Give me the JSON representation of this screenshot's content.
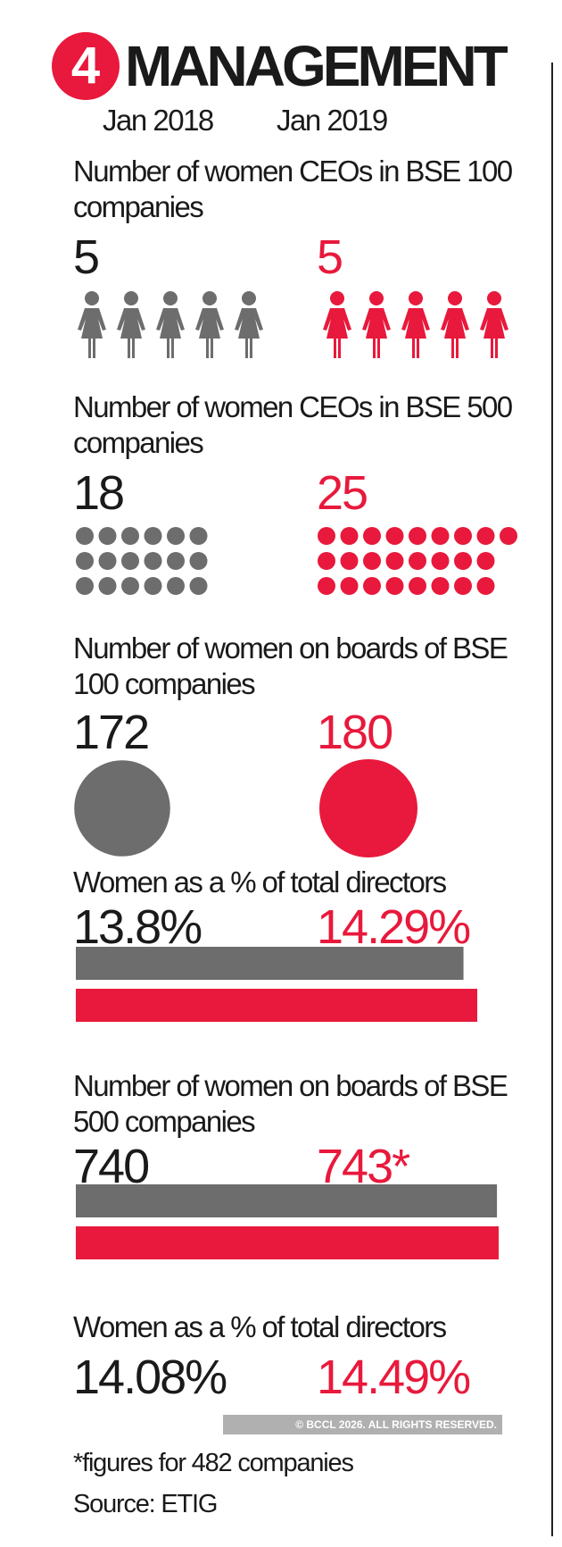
{
  "header": {
    "number": "4",
    "title": "MANAGEMENT",
    "period_1": "Jan 2018",
    "period_2": "Jan 2019"
  },
  "colors": {
    "jan_2018": "#6d6d6d",
    "jan_2019": "#e8193c",
    "badge": "#e8193c"
  },
  "chart_data": [
    {
      "type": "pictogram",
      "title": "Number of women CEOs in BSE 100 companies",
      "icon": "woman-icon",
      "categories": [
        "Jan 2018",
        "Jan 2019"
      ],
      "values": [
        5,
        5
      ],
      "labels": [
        "5",
        "5"
      ]
    },
    {
      "type": "pictogram",
      "title": "Number of women CEOs in BSE 500 companies",
      "icon": "dot",
      "categories": [
        "Jan 2018",
        "Jan 2019"
      ],
      "values": [
        18,
        25
      ],
      "labels": [
        "18",
        "25"
      ]
    },
    {
      "type": "bubble",
      "title": "Number of women on boards of BSE 100 companies",
      "categories": [
        "Jan 2018",
        "Jan 2019"
      ],
      "values": [
        172,
        180
      ],
      "labels": [
        "172",
        "180"
      ]
    },
    {
      "type": "bar",
      "title": "Women as a % of total directors",
      "categories": [
        "Jan 2018",
        "Jan 2019"
      ],
      "values": [
        13.8,
        14.29
      ],
      "labels": [
        "13.8%",
        "14.29%"
      ]
    },
    {
      "type": "bar",
      "title": "Number of women on boards of BSE 500 companies",
      "categories": [
        "Jan 2018",
        "Jan 2019"
      ],
      "values": [
        740,
        743
      ],
      "labels": [
        "740",
        "743*"
      ]
    },
    {
      "type": "table",
      "title": "Women as a % of total directors",
      "categories": [
        "Jan 2018",
        "Jan 2019"
      ],
      "values": [
        14.08,
        14.49
      ],
      "labels": [
        "14.08%",
        "14.49%"
      ]
    }
  ],
  "footer": {
    "note": "*figures for 482 companies",
    "source": "Source: ETIG"
  },
  "watermark": "© BCCL 2026. ALL RIGHTS RESERVED."
}
